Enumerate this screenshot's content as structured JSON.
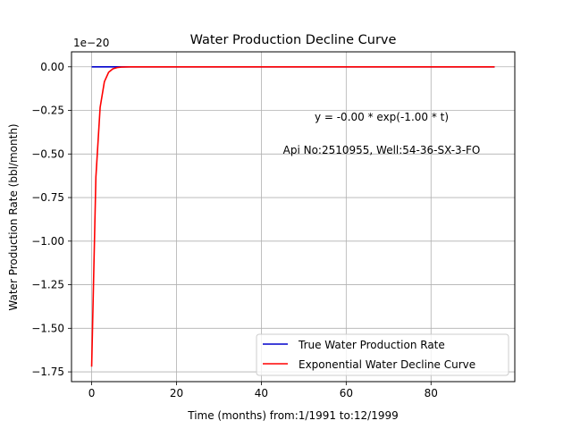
{
  "chart_data": {
    "type": "line",
    "title": "Water Production Decline Curve",
    "xlabel": "Time (months) from:1/1991 to:12/1999",
    "ylabel": "Water Production Rate (bbl/month)",
    "y_offset_label": "1e−20",
    "xlim": [
      -4.75,
      99.75
    ],
    "ylim": [
      -1.806,
      0.086
    ],
    "x_ticks": [
      0,
      20,
      40,
      60,
      80
    ],
    "x_tick_labels": [
      "0",
      "20",
      "40",
      "60",
      "80"
    ],
    "y_ticks": [
      0.0,
      -0.25,
      -0.5,
      -0.75,
      -1.0,
      -1.25,
      -1.5,
      -1.75
    ],
    "y_tick_labels": [
      "0.00",
      "−0.25",
      "−0.50",
      "−0.75",
      "−1.00",
      "−1.25",
      "−1.50",
      "−1.75"
    ],
    "grid": true,
    "legend_position": "lower-right",
    "annotations": [
      "y = -0.00 * exp(-1.00 * t)",
      "Api No:2510955, Well:54-36-SX-3-FO"
    ],
    "series": [
      {
        "name": "True Water Production Rate",
        "color": "#0000cc",
        "x": [
          0,
          95
        ],
        "y": [
          0,
          0
        ]
      },
      {
        "name": "Exponential Water Decline Curve",
        "color": "#ff0000",
        "function": "exponential",
        "amplitude": -1.72,
        "decay": 1.0,
        "x_start": 0,
        "x_end": 95
      }
    ]
  }
}
